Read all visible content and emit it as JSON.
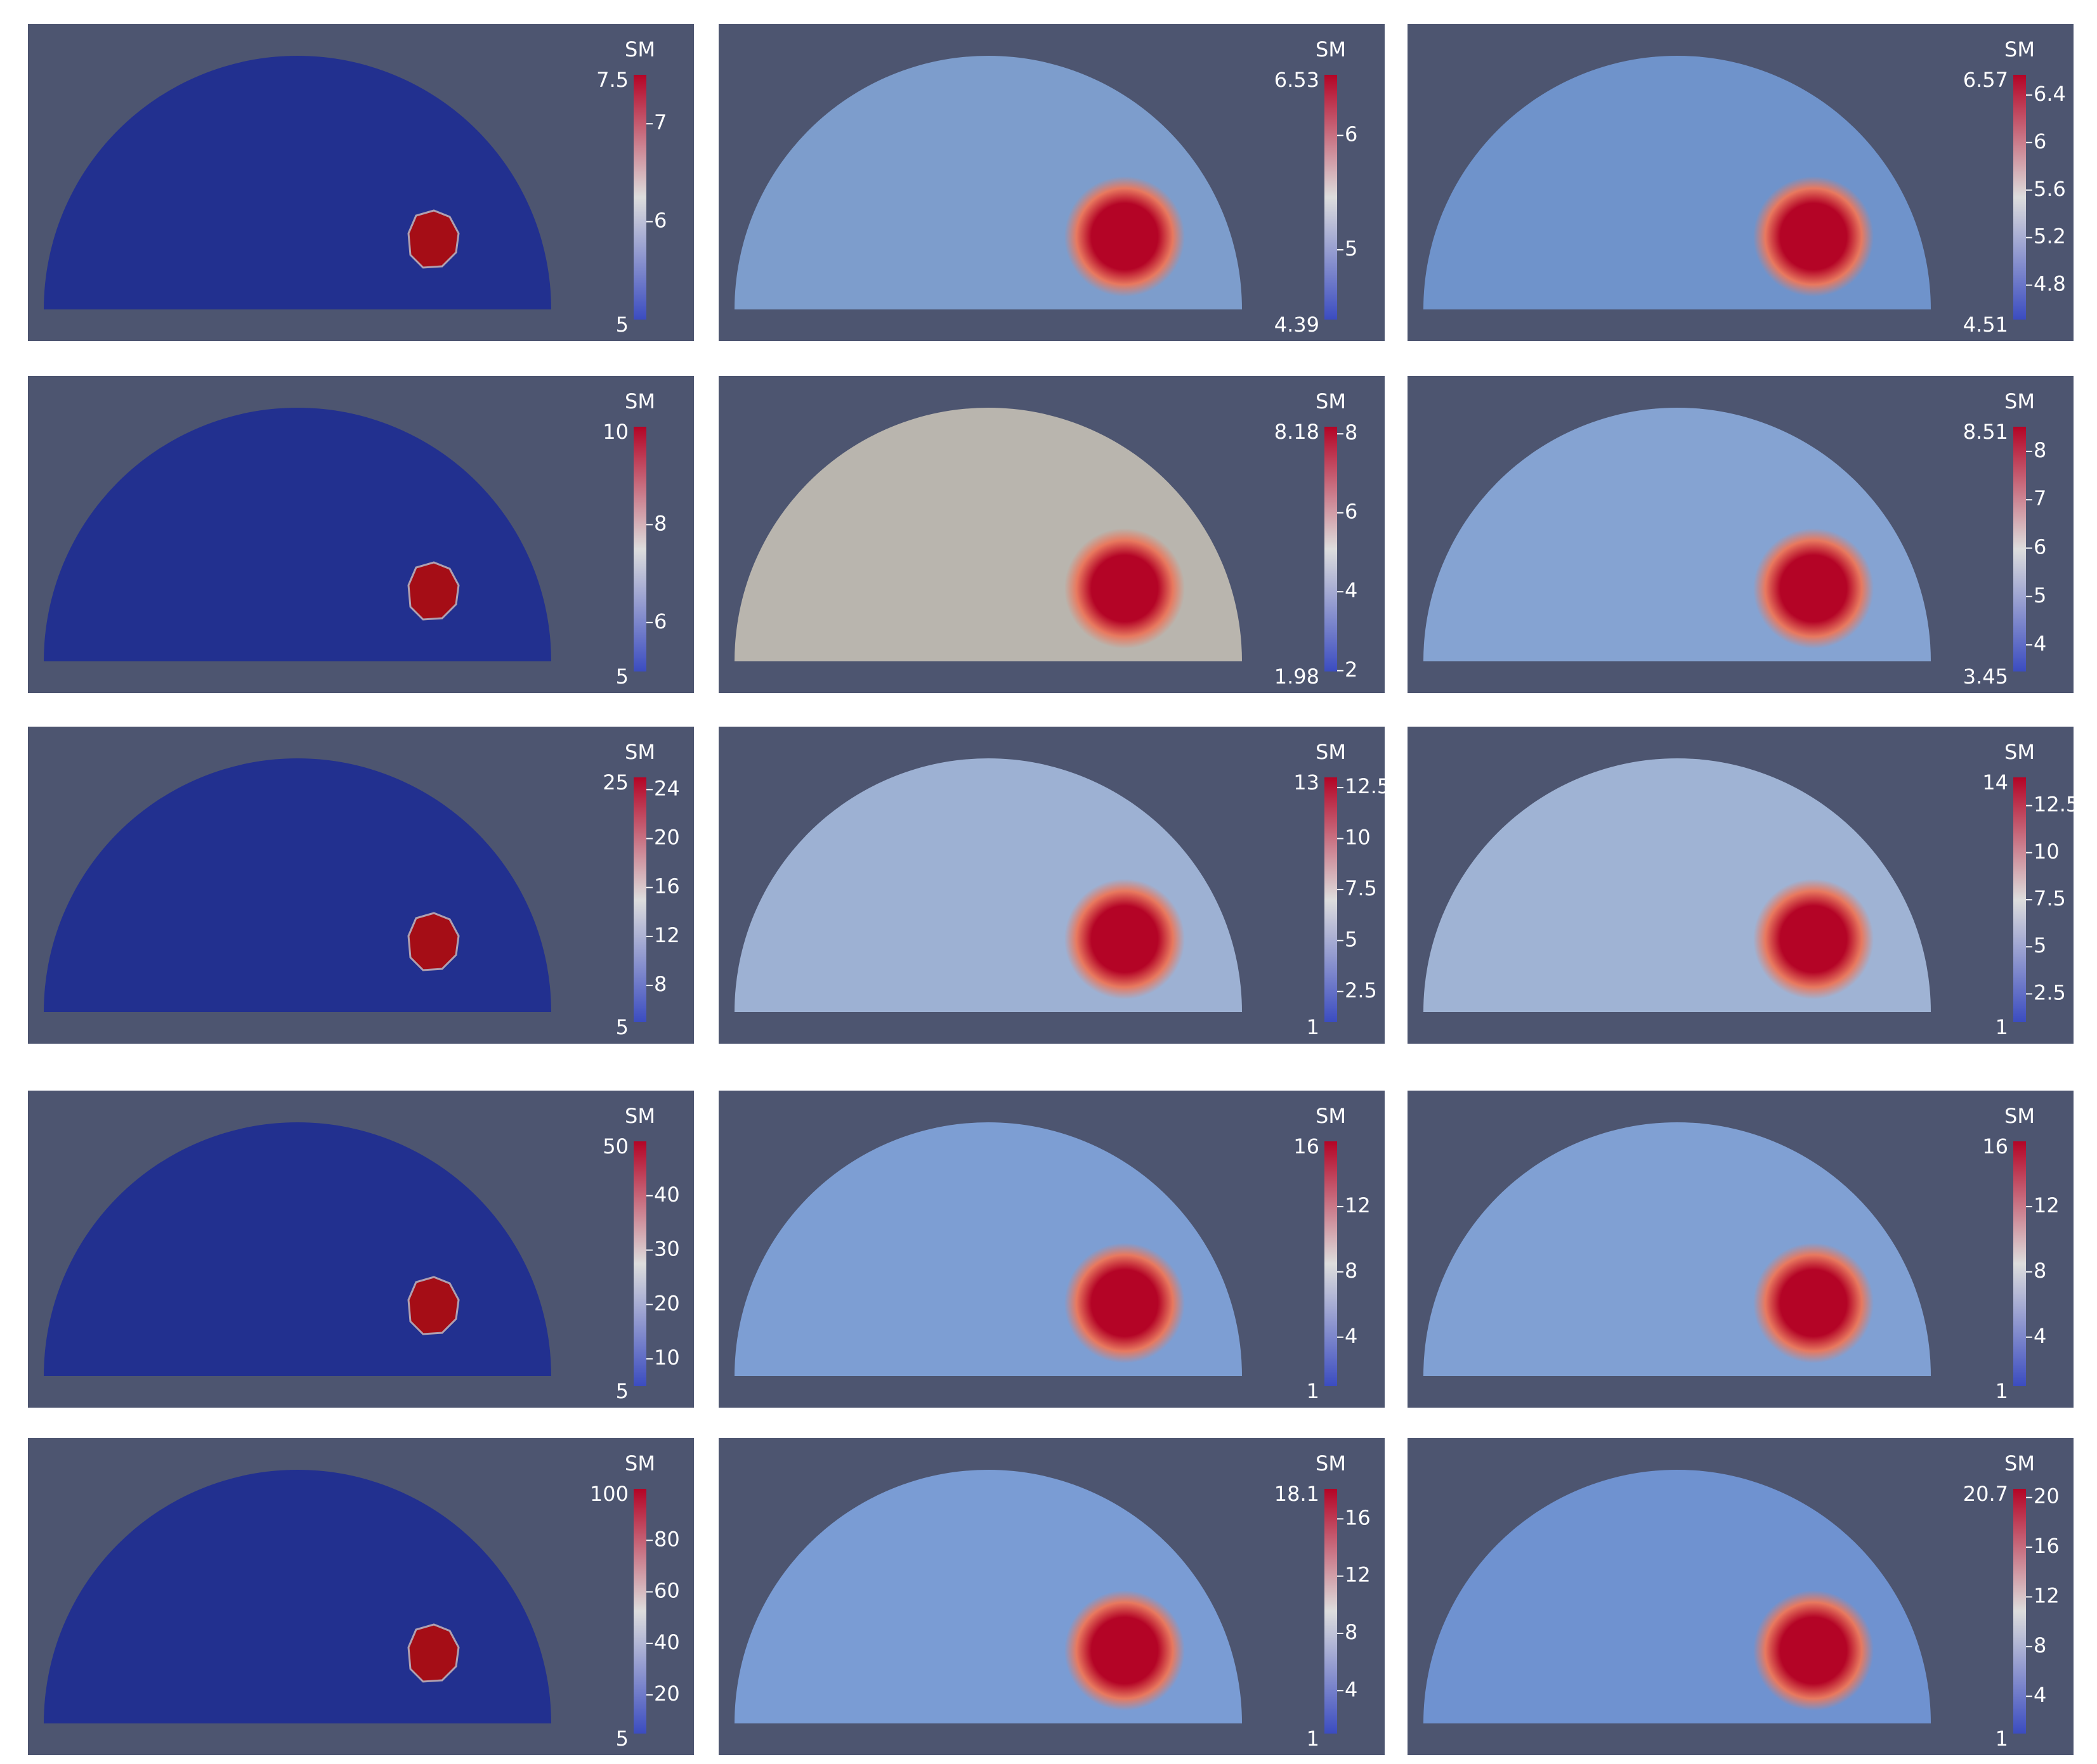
{
  "panels": [
    {
      "title": "SM",
      "max": 7.5,
      "min": 5,
      "ticks": [
        6,
        7
      ]
    },
    {
      "title": "SM",
      "max": 6.53,
      "min": 4.39,
      "ticks": [
        5,
        6
      ]
    },
    {
      "title": "SM",
      "max": 6.57,
      "min": 4.51,
      "ticks": [
        4.8,
        5.2,
        5.6,
        6,
        6.4
      ]
    },
    {
      "title": "SM",
      "max": 10,
      "min": 5,
      "ticks": [
        6,
        8
      ]
    },
    {
      "title": "SM",
      "max": 8.18,
      "min": 1.98,
      "ticks": [
        2,
        4,
        6,
        8
      ]
    },
    {
      "title": "SM",
      "max": 8.51,
      "min": 3.45,
      "ticks": [
        4,
        5,
        6,
        7,
        8
      ]
    },
    {
      "title": "SM",
      "max": 25,
      "min": 5,
      "ticks": [
        8,
        12,
        16,
        20,
        24
      ]
    },
    {
      "title": "SM",
      "max": 13,
      "min": 1,
      "ticks": [
        2.5,
        5,
        7.5,
        10,
        12.5
      ]
    },
    {
      "title": "SM",
      "max": 14,
      "min": 1,
      "ticks": [
        2.5,
        5,
        7.5,
        10,
        12.5
      ]
    },
    {
      "title": "SM",
      "max": 50,
      "min": 5,
      "ticks": [
        10,
        20,
        30,
        40
      ]
    },
    {
      "title": "SM",
      "max": 16,
      "min": 1,
      "ticks": [
        4,
        8,
        12
      ]
    },
    {
      "title": "SM",
      "max": 16,
      "min": 1,
      "ticks": [
        4,
        8,
        12
      ]
    },
    {
      "title": "SM",
      "max": 100,
      "min": 5,
      "ticks": [
        20,
        40,
        60,
        80
      ]
    },
    {
      "title": "SM",
      "max": 18.1,
      "min": 1,
      "ticks": [
        4,
        8,
        12,
        16
      ]
    },
    {
      "title": "SM",
      "max": 20.7,
      "min": 1,
      "ticks": [
        4,
        8,
        12,
        16,
        20
      ]
    }
  ]
}
